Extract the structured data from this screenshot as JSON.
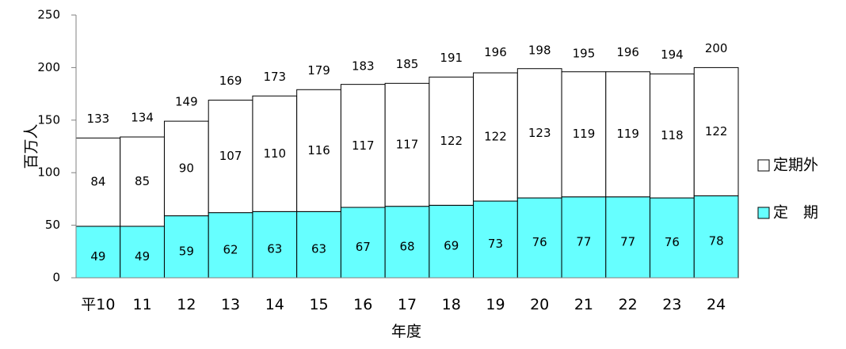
{
  "chart_data": {
    "type": "bar",
    "stacked": true,
    "categories": [
      "平10",
      "11",
      "12",
      "13",
      "14",
      "15",
      "16",
      "17",
      "18",
      "19",
      "20",
      "21",
      "22",
      "23",
      "24"
    ],
    "series": [
      {
        "name": "定　期",
        "values": [
          49,
          49,
          59,
          62,
          63,
          63,
          67,
          68,
          69,
          73,
          76,
          77,
          77,
          76,
          78
        ],
        "color": "#66ffff"
      },
      {
        "name": "定期外",
        "values": [
          84,
          85,
          90,
          107,
          110,
          116,
          117,
          117,
          122,
          122,
          123,
          119,
          119,
          118,
          122
        ],
        "color": "#ffffff"
      }
    ],
    "totals": [
      133,
      134,
      149,
      169,
      173,
      179,
      183,
      185,
      191,
      196,
      198,
      195,
      196,
      194,
      200
    ],
    "yticks": [
      0,
      50,
      100,
      150,
      200,
      250
    ],
    "ylim": [
      0,
      250
    ],
    "xlabel": "年度",
    "ylabel": "百万人",
    "legend_position": "right",
    "grid": false
  }
}
